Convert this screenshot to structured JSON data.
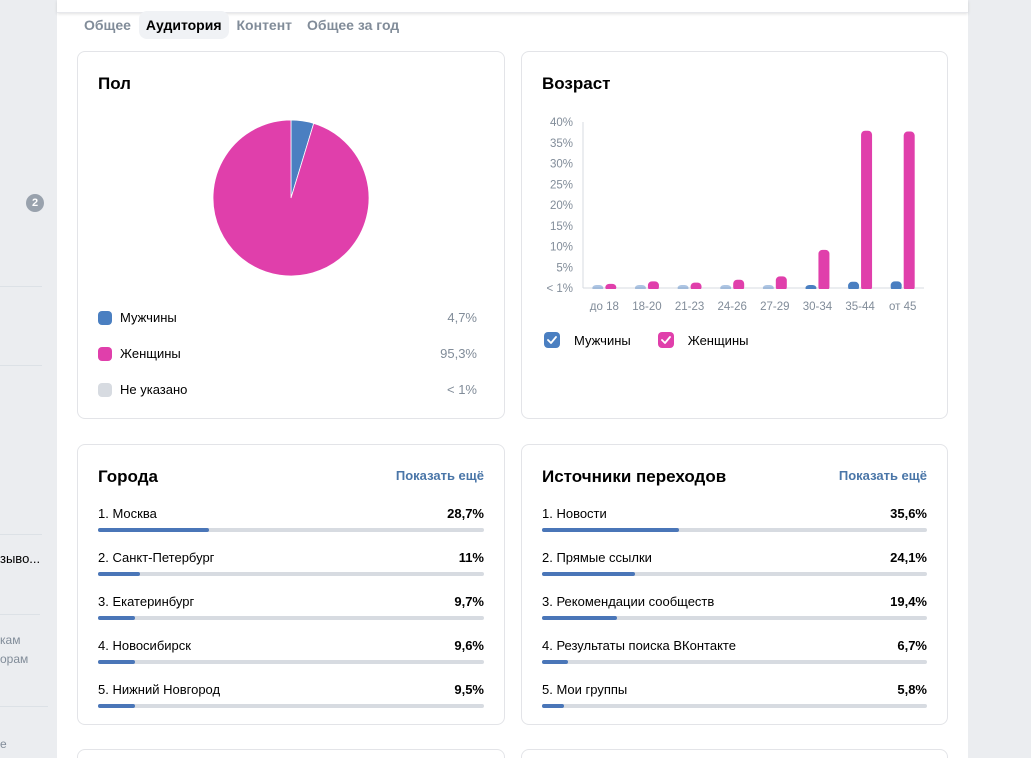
{
  "sidebar": {
    "badge_count": "2",
    "fragments": [
      "зыво...",
      "кам",
      "орам",
      "е"
    ]
  },
  "tabs": [
    {
      "label": "Общее",
      "active": false
    },
    {
      "label": "Аудитория",
      "active": true
    },
    {
      "label": "Контент",
      "active": false
    },
    {
      "label": "Общее за год",
      "active": false
    }
  ],
  "gender": {
    "title": "Пол",
    "items": [
      {
        "label": "Мужчины",
        "value": "4,7%",
        "color": "#4a7fc1"
      },
      {
        "label": "Женщины",
        "value": "95,3%",
        "color": "#e03fab"
      },
      {
        "label": "Не указано",
        "value": "< 1%",
        "color": "#d7dbe1"
      }
    ]
  },
  "age": {
    "title": "Возраст",
    "legend": [
      {
        "label": "Мужчины",
        "color": "#4a7fc1",
        "checked": true
      },
      {
        "label": "Женщины",
        "color": "#e03fab",
        "checked": true
      }
    ]
  },
  "cities": {
    "title": "Города",
    "show_more": "Показать ещё",
    "items": [
      {
        "label": "1. Москва",
        "value": "28,7%",
        "percent": 28.7
      },
      {
        "label": "2. Санкт-Петербург",
        "value": "11%",
        "percent": 11
      },
      {
        "label": "3. Екатеринбург",
        "value": "9,7%",
        "percent": 9.7
      },
      {
        "label": "4. Новосибирск",
        "value": "9,6%",
        "percent": 9.6
      },
      {
        "label": "5. Нижний Новгород",
        "value": "9,5%",
        "percent": 9.5
      }
    ]
  },
  "sources": {
    "title": "Источники переходов",
    "show_more": "Показать ещё",
    "items": [
      {
        "label": "1. Новости",
        "value": "35,6%",
        "percent": 35.6
      },
      {
        "label": "2. Прямые ссылки",
        "value": "24,1%",
        "percent": 24.1
      },
      {
        "label": "3. Рекомендации сообществ",
        "value": "19,4%",
        "percent": 19.4
      },
      {
        "label": "4. Результаты поиска ВКонтакте",
        "value": "6,7%",
        "percent": 6.7
      },
      {
        "label": "5. Мои группы",
        "value": "5,8%",
        "percent": 5.8
      }
    ]
  },
  "chart_data": [
    {
      "type": "pie",
      "title": "Пол",
      "categories": [
        "Мужчины",
        "Женщины",
        "Не указано"
      ],
      "values": [
        4.7,
        95.3,
        0
      ],
      "colors": [
        "#4a7fc1",
        "#e03fab",
        "#d7dbe1"
      ]
    },
    {
      "type": "bar",
      "title": "Возраст",
      "categories": [
        "до 18",
        "18-20",
        "21-23",
        "24-26",
        "27-29",
        "30-34",
        "35-44",
        "от 45"
      ],
      "series": [
        {
          "name": "Мужчины",
          "color": "#4a7fc1",
          "values": [
            0.1,
            0.1,
            0.1,
            0.1,
            0.1,
            0.4,
            1.5,
            1.6
          ]
        },
        {
          "name": "Женщины",
          "color": "#e03fab",
          "values": [
            1.0,
            1.6,
            1.3,
            2.0,
            2.8,
            9.2,
            37.9,
            37.7
          ]
        }
      ],
      "yticks": [
        "< 1%",
        "5%",
        "10%",
        "15%",
        "20%",
        "25%",
        "30%",
        "35%",
        "40%"
      ],
      "ylim": [
        0,
        40
      ],
      "legend": "bottom-left"
    }
  ]
}
